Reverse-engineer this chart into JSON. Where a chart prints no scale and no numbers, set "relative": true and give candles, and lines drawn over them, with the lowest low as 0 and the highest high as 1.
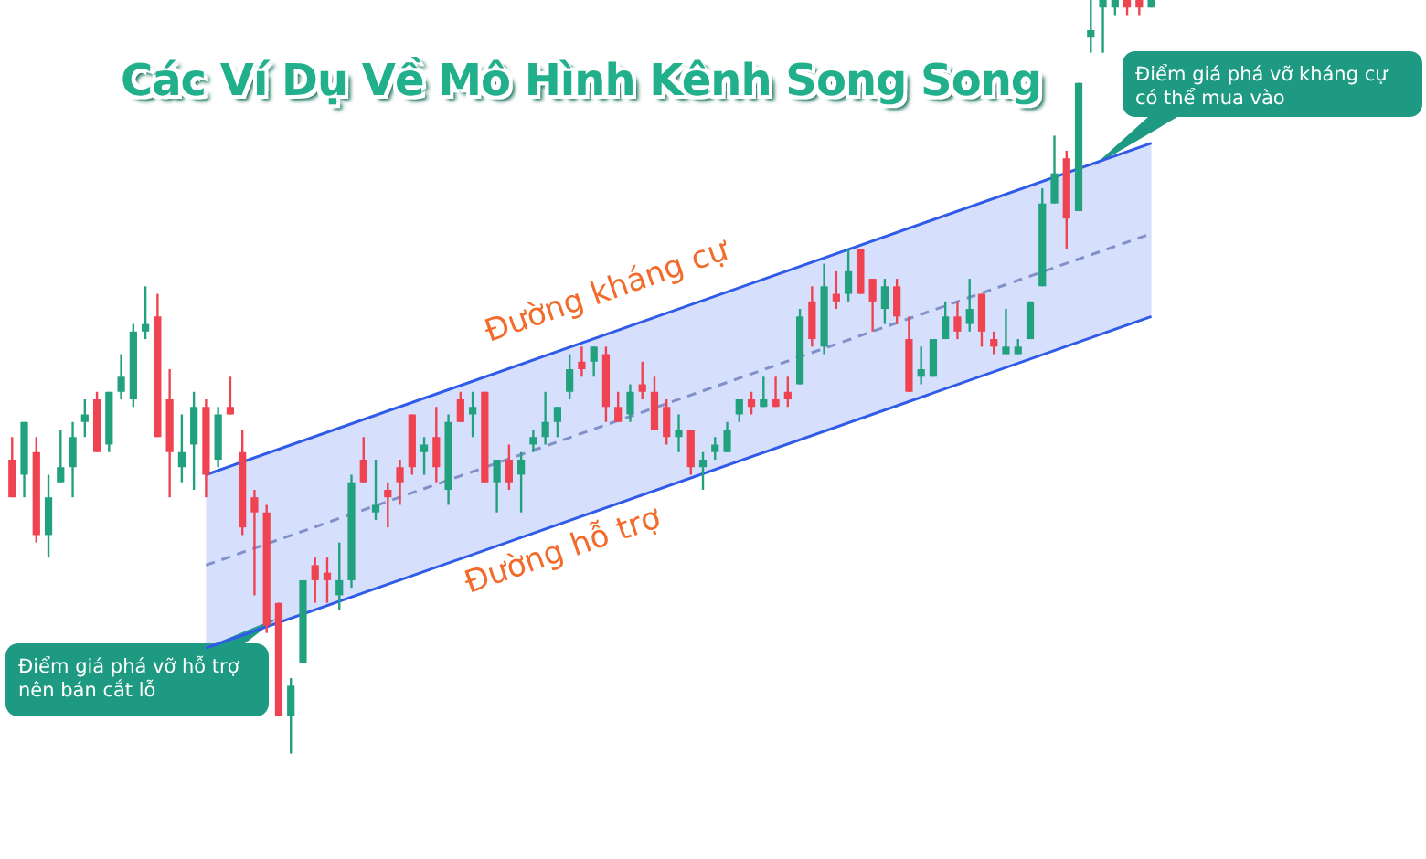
{
  "chart_data": {
    "type": "candlestick",
    "title": "Các Ví Dụ Về Mô Hình Kênh Song Song",
    "relative": true,
    "categories": [
      null,
      null,
      null,
      null,
      null,
      null,
      null,
      null,
      null,
      null,
      null,
      null,
      null,
      null,
      null,
      null,
      null,
      null,
      null,
      null,
      null,
      null,
      null,
      null,
      null,
      null,
      null,
      null,
      null,
      null,
      null,
      null,
      null,
      null,
      null,
      null,
      null,
      null,
      null,
      null,
      null,
      null,
      null,
      null,
      null,
      null,
      null,
      null,
      null,
      null,
      null,
      null,
      null,
      null,
      null,
      null,
      null,
      null,
      null,
      null,
      null,
      null,
      null,
      null,
      null,
      null,
      null,
      null,
      null,
      null,
      null,
      null,
      null,
      null,
      null,
      null,
      null,
      null,
      null,
      null,
      null,
      null,
      null,
      null,
      null,
      null,
      null,
      null,
      null,
      null,
      null,
      null,
      null,
      null,
      null
    ],
    "series": [
      {
        "type": "line",
        "color": "#8090c8",
        "line_style": "dashed",
        "values": [
          null,
          null,
          null,
          null,
          null,
          null,
          null,
          null,
          null,
          null,
          null,
          null,
          null,
          null,
          null,
          null,
          0.25,
          null,
          null,
          null,
          null,
          null,
          null,
          null,
          null,
          null,
          null,
          null,
          null,
          null,
          null,
          null,
          null,
          null,
          null,
          null,
          null,
          null,
          null,
          null,
          null,
          null,
          null,
          null,
          null,
          null,
          null,
          null,
          null,
          null,
          null,
          null,
          null,
          null,
          null,
          null,
          null,
          null,
          null,
          null,
          null,
          null,
          null,
          null,
          null,
          null,
          null,
          null,
          null,
          null,
          null,
          null,
          null,
          null,
          null,
          null,
          null,
          null,
          null,
          null,
          null,
          null,
          null,
          null,
          null,
          null,
          null,
          null,
          null,
          null,
          null,
          null,
          null,
          null,
          0.69
        ],
        "lower": [
          null,
          null,
          null,
          null,
          null,
          null,
          null,
          null,
          null,
          null,
          null,
          null,
          null,
          null,
          null,
          null,
          0.14,
          null,
          null,
          null,
          null,
          null,
          null,
          null,
          null,
          null,
          null,
          null,
          null,
          null,
          null,
          null,
          null,
          null,
          null,
          null,
          null,
          null,
          null,
          null,
          null,
          null,
          null,
          null,
          null,
          null,
          null,
          null,
          null,
          null,
          null,
          null,
          null,
          null,
          null,
          null,
          null,
          null,
          null,
          null,
          null,
          null,
          null,
          null,
          null,
          null,
          null,
          null,
          null,
          null,
          null,
          null,
          null,
          null,
          null,
          null,
          null,
          null,
          null,
          null,
          null,
          null,
          null,
          null,
          null,
          null,
          null,
          null,
          null,
          null,
          null,
          null,
          null,
          null,
          0.58
        ],
        "upper": [
          null,
          null,
          null,
          null,
          null,
          null,
          null,
          null,
          null,
          null,
          null,
          null,
          null,
          null,
          null,
          null,
          0.37,
          null,
          null,
          null,
          null,
          null,
          null,
          null,
          null,
          null,
          null,
          null,
          null,
          null,
          null,
          null,
          null,
          null,
          null,
          null,
          null,
          null,
          null,
          null,
          null,
          null,
          null,
          null,
          null,
          null,
          null,
          null,
          null,
          null,
          null,
          null,
          null,
          null,
          null,
          null,
          null,
          null,
          null,
          null,
          null,
          null,
          null,
          null,
          null,
          null,
          null,
          null,
          null,
          null,
          null,
          null,
          null,
          null,
          null,
          null,
          null,
          null,
          null,
          null,
          null,
          null,
          null,
          null,
          null,
          null,
          null,
          null,
          null,
          null,
          null,
          null,
          null,
          null,
          0.81
        ]
      },
      {
        "type": "line",
        "color": "#2f5be8",
        "values": [
          null,
          null,
          null,
          null,
          null,
          null,
          null,
          null,
          null,
          null,
          null,
          null,
          null,
          null,
          null,
          null,
          0.37,
          null,
          null,
          null,
          null,
          null,
          null,
          null,
          null,
          null,
          null,
          null,
          null,
          null,
          null,
          null,
          null,
          null,
          null,
          null,
          null,
          null,
          null,
          null,
          null,
          null,
          null,
          null,
          null,
          null,
          null,
          null,
          null,
          null,
          null,
          null,
          null,
          null,
          null,
          null,
          null,
          null,
          null,
          null,
          null,
          null,
          null,
          null,
          null,
          null,
          null,
          null,
          null,
          null,
          null,
          null,
          null,
          null,
          null,
          null,
          null,
          null,
          null,
          null,
          null,
          null,
          null,
          null,
          null,
          null,
          null,
          null,
          null,
          null,
          null,
          null,
          null,
          null,
          0.81
        ]
      },
      {
        "type": "line",
        "color": "#2f5be8",
        "values": [
          null,
          null,
          null,
          null,
          null,
          null,
          null,
          null,
          null,
          null,
          null,
          null,
          null,
          null,
          null,
          null,
          0.14,
          null,
          null,
          null,
          null,
          null,
          null,
          null,
          null,
          null,
          null,
          null,
          null,
          null,
          null,
          null,
          null,
          null,
          null,
          null,
          null,
          null,
          null,
          null,
          null,
          null,
          null,
          null,
          null,
          null,
          null,
          null,
          null,
          null,
          null,
          null,
          null,
          null,
          null,
          null,
          null,
          null,
          null,
          null,
          null,
          null,
          null,
          null,
          null,
          null,
          null,
          null,
          null,
          null,
          null,
          null,
          null,
          null,
          null,
          null,
          null,
          null,
          null,
          null,
          null,
          null,
          null,
          null,
          null,
          null,
          null,
          null,
          null,
          null,
          null,
          null,
          null,
          null,
          0.58
        ]
      },
      {
        "ohlc": [
          [
            0.39,
            0.42,
            0.34,
            0.34
          ],
          [
            0.37,
            0.44,
            0.34,
            0.44
          ],
          [
            0.4,
            0.42,
            0.28,
            0.29
          ],
          [
            0.29,
            0.37,
            0.26,
            0.34
          ],
          [
            0.36,
            0.43,
            0.36,
            0.38
          ],
          [
            0.38,
            0.44,
            0.34,
            0.42
          ],
          [
            0.44,
            0.47,
            0.42,
            0.45
          ],
          [
            0.47,
            0.48,
            0.4,
            0.4
          ],
          [
            0.41,
            0.48,
            0.4,
            0.48
          ],
          [
            0.48,
            0.53,
            0.47,
            0.5
          ],
          [
            0.47,
            0.57,
            0.46,
            0.56
          ],
          [
            0.56,
            0.62,
            0.55,
            0.57
          ],
          [
            0.58,
            0.61,
            0.42,
            0.42
          ],
          [
            0.47,
            0.51,
            0.34,
            0.4
          ],
          [
            0.38,
            0.45,
            0.36,
            0.4
          ],
          [
            0.41,
            0.48,
            0.35,
            0.46
          ],
          [
            0.46,
            0.47,
            0.34,
            0.37
          ],
          [
            0.39,
            0.46,
            0.38,
            0.45
          ],
          [
            0.46,
            0.5,
            0.45,
            0.45
          ],
          [
            0.4,
            0.43,
            0.29,
            0.3
          ],
          [
            0.34,
            0.35,
            0.21,
            0.32
          ],
          [
            0.32,
            0.33,
            0.16,
            0.17
          ],
          [
            0.2,
            0.2,
            0.05,
            0.05
          ],
          [
            0.05,
            0.1,
            0,
            0.09
          ],
          [
            0.12,
            0.23,
            0.12,
            0.23
          ],
          [
            0.25,
            0.26,
            0.2,
            0.23
          ],
          [
            0.24,
            0.26,
            0.2,
            0.23
          ],
          [
            0.21,
            0.28,
            0.19,
            0.23
          ],
          [
            0.23,
            0.37,
            0.22,
            0.36
          ],
          [
            0.39,
            0.42,
            0.36,
            0.36
          ],
          [
            0.32,
            0.39,
            0.31,
            0.33
          ],
          [
            0.35,
            0.36,
            0.3,
            0.34
          ],
          [
            0.38,
            0.39,
            0.33,
            0.36
          ],
          [
            0.45,
            0.45,
            0.37,
            0.38
          ],
          [
            0.4,
            0.42,
            0.37,
            0.41
          ],
          [
            0.42,
            0.46,
            0.36,
            0.38
          ],
          [
            0.35,
            0.45,
            0.33,
            0.44
          ],
          [
            0.47,
            0.48,
            0.44,
            0.44
          ],
          [
            0.45,
            0.48,
            0.42,
            0.46
          ],
          [
            0.48,
            0.48,
            0.36,
            0.36
          ],
          [
            0.36,
            0.39,
            0.32,
            0.39
          ],
          [
            0.39,
            0.41,
            0.35,
            0.36
          ],
          [
            0.37,
            0.4,
            0.32,
            0.39
          ],
          [
            0.41,
            0.43,
            0.4,
            0.42
          ],
          [
            0.42,
            0.48,
            0.41,
            0.44
          ],
          [
            0.44,
            0.46,
            0.42,
            0.46
          ],
          [
            0.48,
            0.53,
            0.47,
            0.51
          ],
          [
            0.52,
            0.54,
            0.5,
            0.51
          ],
          [
            0.52,
            0.54,
            0.5,
            0.54
          ],
          [
            0.53,
            0.54,
            0.44,
            0.46
          ],
          [
            0.46,
            0.48,
            0.44,
            0.44
          ],
          [
            0.45,
            0.49,
            0.44,
            0.48
          ],
          [
            0.49,
            0.52,
            0.47,
            0.48
          ],
          [
            0.48,
            0.5,
            0.43,
            0.43
          ],
          [
            0.46,
            0.47,
            0.41,
            0.42
          ],
          [
            0.42,
            0.45,
            0.4,
            0.43
          ],
          [
            0.43,
            0.43,
            0.37,
            0.38
          ],
          [
            0.38,
            0.4,
            0.35,
            0.39
          ],
          [
            0.4,
            0.42,
            0.39,
            0.41
          ],
          [
            0.4,
            0.44,
            0.4,
            0.43
          ],
          [
            0.45,
            0.47,
            0.44,
            0.47
          ],
          [
            0.47,
            0.48,
            0.45,
            0.46
          ],
          [
            0.46,
            0.5,
            0.46,
            0.47
          ],
          [
            0.47,
            0.5,
            0.46,
            0.46
          ],
          [
            0.48,
            0.5,
            0.46,
            0.47
          ],
          [
            0.49,
            0.59,
            0.49,
            0.58
          ],
          [
            0.6,
            0.62,
            0.54,
            0.55
          ],
          [
            0.54,
            0.65,
            0.53,
            0.62
          ],
          [
            0.61,
            0.64,
            0.59,
            0.6
          ],
          [
            0.61,
            0.67,
            0.6,
            0.64
          ],
          [
            0.67,
            0.67,
            0.61,
            0.61
          ],
          [
            0.63,
            0.63,
            0.56,
            0.6
          ],
          [
            0.59,
            0.63,
            0.57,
            0.62
          ],
          [
            0.62,
            0.63,
            0.57,
            0.58
          ],
          [
            0.55,
            0.58,
            0.48,
            0.48
          ],
          [
            0.5,
            0.54,
            0.49,
            0.51
          ],
          [
            0.5,
            0.55,
            0.5,
            0.55
          ],
          [
            0.55,
            0.6,
            0.55,
            0.58
          ],
          [
            0.58,
            0.6,
            0.55,
            0.56
          ],
          [
            0.57,
            0.63,
            0.56,
            0.59
          ],
          [
            0.61,
            0.61,
            0.54,
            0.56
          ],
          [
            0.55,
            0.56,
            0.53,
            0.54
          ],
          [
            0.53,
            0.59,
            0.53,
            0.54
          ],
          [
            0.53,
            0.55,
            0.53,
            0.54
          ],
          [
            0.55,
            0.6,
            0.55,
            0.6
          ],
          [
            0.62,
            0.75,
            0.62,
            0.73
          ],
          [
            0.73,
            0.82,
            0.73,
            0.77
          ],
          [
            0.79,
            0.8,
            0.67,
            0.71
          ],
          [
            0.72,
            0.89,
            0.72,
            0.89
          ],
          [
            0.95,
            1,
            0.93,
            0.96
          ],
          [
            0.99,
            1,
            0.93,
            1
          ],
          [
            0.99,
            1,
            0.98,
            1
          ],
          [
            1,
            1,
            0.98,
            0.99
          ],
          [
            1,
            1,
            0.98,
            0.99
          ],
          [
            0.99,
            1,
            0.99,
            1
          ]
        ],
        "colors": [
          "#ef4351",
          "#22a17f",
          "#ef4351",
          "#22a17f",
          "#22a17f",
          "#22a17f",
          "#22a17f",
          "#ef4351",
          "#22a17f",
          "#22a17f",
          "#22a17f",
          "#22a17f",
          "#ef4351",
          "#ef4351",
          "#22a17f",
          "#22a17f",
          "#ef4351",
          "#22a17f",
          "#ef4351",
          "#ef4351",
          "#ef4351",
          "#ef4351",
          "#ef4351",
          "#22a17f",
          "#22a17f",
          "#ef4351",
          "#ef4351",
          "#22a17f",
          "#22a17f",
          "#ef4351",
          "#22a17f",
          "#ef4351",
          "#ef4351",
          "#ef4351",
          "#22a17f",
          "#ef4351",
          "#22a17f",
          "#ef4351",
          "#22a17f",
          "#ef4351",
          "#22a17f",
          "#ef4351",
          "#22a17f",
          "#22a17f",
          "#22a17f",
          "#22a17f",
          "#22a17f",
          "#ef4351",
          "#22a17f",
          "#ef4351",
          "#ef4351",
          "#22a17f",
          "#ef4351",
          "#ef4351",
          "#ef4351",
          "#22a17f",
          "#ef4351",
          "#22a17f",
          "#22a17f",
          "#22a17f",
          "#22a17f",
          "#ef4351",
          "#22a17f",
          "#ef4351",
          "#ef4351",
          "#22a17f",
          "#ef4351",
          "#22a17f",
          "#ef4351",
          "#22a17f",
          "#ef4351",
          "#ef4351",
          "#22a17f",
          "#ef4351",
          "#ef4351",
          "#22a17f",
          "#22a17f",
          "#22a17f",
          "#ef4351",
          "#22a17f",
          "#ef4351",
          "#ef4351",
          "#22a17f",
          "#22a17f",
          "#22a17f",
          "#22a17f",
          "#22a17f",
          "#ef4351",
          "#22a17f",
          "#22a17f",
          "#22a17f",
          "#22a17f",
          "#ef4351",
          "#ef4351",
          "#22a17f"
        ]
      }
    ],
    "annotations": [
      "Điểm giá phá vỡ hỗ trợ\nnên bán cắt lỗ",
      "Điểm giá phá vỡ kháng cự\ncó thể mua vào",
      "Đường kháng cự",
      "Đường hỗ trợ"
    ]
  }
}
